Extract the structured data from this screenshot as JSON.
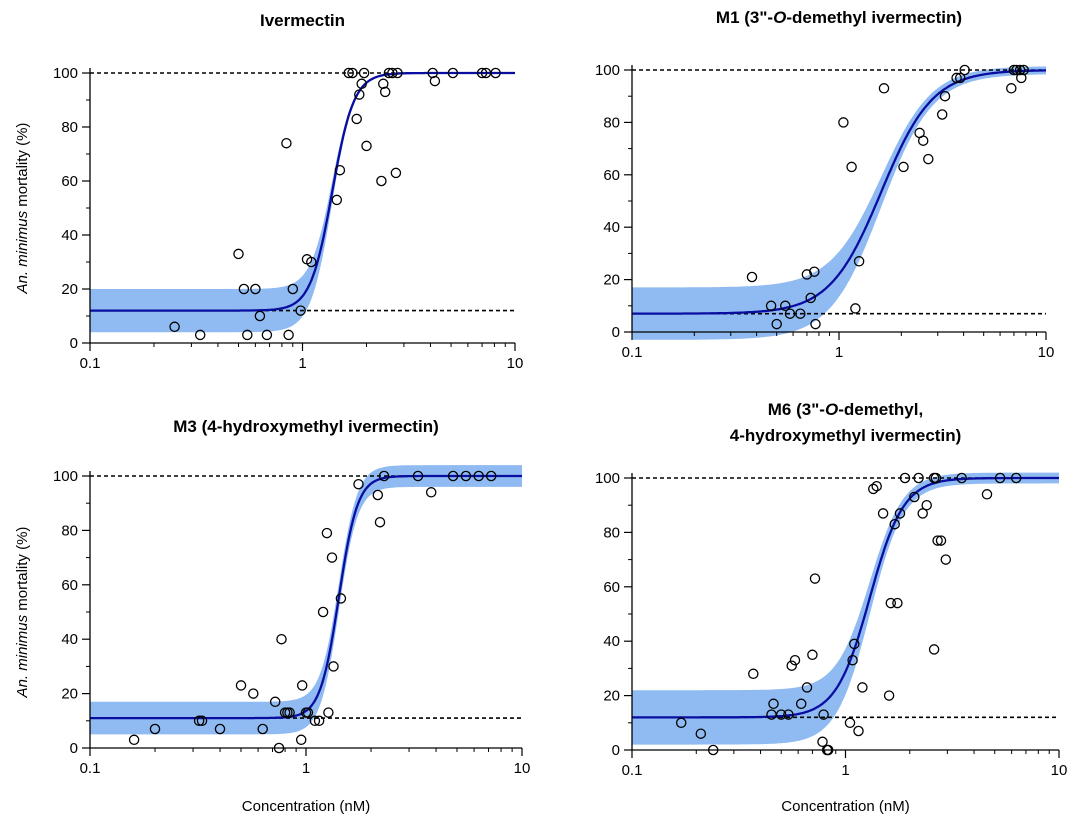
{
  "chart_data": [
    {
      "type": "scatter",
      "title_lines": [
        [
          "Ivermectin"
        ]
      ],
      "ylabel_parts": [
        "An. minimus",
        " mortality (%)"
      ],
      "xlabel": "",
      "xscale": "log",
      "xlim": [
        0.1,
        10
      ],
      "ylim": [
        0,
        100
      ],
      "xticks": [
        "0.1",
        "1",
        "10"
      ],
      "yticks": [
        "0",
        "20",
        "40",
        "60",
        "80",
        "100"
      ],
      "reference_lines": [
        12,
        100
      ],
      "fit": {
        "bottom": 12,
        "top": 100,
        "ec50": 1.38,
        "hill": 8.5
      },
      "band_halfwidth": [
        8,
        0
      ],
      "points": [
        [
          0.25,
          6
        ],
        [
          0.33,
          3
        ],
        [
          0.5,
          33
        ],
        [
          0.53,
          20
        ],
        [
          0.55,
          3
        ],
        [
          0.6,
          20
        ],
        [
          0.63,
          10
        ],
        [
          0.68,
          3
        ],
        [
          0.84,
          74
        ],
        [
          0.86,
          3
        ],
        [
          0.9,
          20
        ],
        [
          0.98,
          12
        ],
        [
          1.05,
          31
        ],
        [
          1.1,
          30
        ],
        [
          1.45,
          53
        ],
        [
          1.5,
          64
        ],
        [
          1.65,
          100
        ],
        [
          1.72,
          100
        ],
        [
          1.8,
          83
        ],
        [
          1.85,
          92
        ],
        [
          1.9,
          96
        ],
        [
          1.95,
          100
        ],
        [
          2.0,
          73
        ],
        [
          2.35,
          60
        ],
        [
          2.4,
          96
        ],
        [
          2.45,
          93
        ],
        [
          2.55,
          100
        ],
        [
          2.65,
          100
        ],
        [
          2.75,
          63
        ],
        [
          2.8,
          100
        ],
        [
          4.1,
          100
        ],
        [
          4.2,
          97
        ],
        [
          5.1,
          100
        ],
        [
          7.0,
          100
        ],
        [
          7.3,
          100
        ],
        [
          8.1,
          100
        ]
      ]
    },
    {
      "type": "scatter",
      "title_lines": [
        [
          "M1 (3\"-",
          "O",
          "-demethyl ivermectin)"
        ]
      ],
      "ylabel_parts": [],
      "xlabel": "",
      "xscale": "log",
      "xlim": [
        0.1,
        10
      ],
      "ylim": [
        0,
        100
      ],
      "xticks": [
        "0.1",
        "1",
        "10"
      ],
      "yticks": [
        "0",
        "20",
        "40",
        "60",
        "80",
        "100"
      ],
      "reference_lines": [
        7,
        100
      ],
      "fit": {
        "bottom": 7,
        "top": 100,
        "ec50": 1.6,
        "hill": 3.5
      },
      "band_halfwidth": [
        10,
        1.5
      ],
      "points": [
        [
          0.38,
          21
        ],
        [
          0.47,
          10
        ],
        [
          0.5,
          3
        ],
        [
          0.55,
          10
        ],
        [
          0.58,
          7
        ],
        [
          0.65,
          7
        ],
        [
          0.7,
          22
        ],
        [
          0.73,
          13
        ],
        [
          0.76,
          23
        ],
        [
          0.77,
          3
        ],
        [
          1.05,
          80
        ],
        [
          1.15,
          63
        ],
        [
          1.2,
          9
        ],
        [
          1.25,
          27
        ],
        [
          1.65,
          93
        ],
        [
          2.05,
          63
        ],
        [
          2.45,
          76
        ],
        [
          2.55,
          73
        ],
        [
          2.7,
          66
        ],
        [
          3.15,
          83
        ],
        [
          3.25,
          90
        ],
        [
          3.7,
          97
        ],
        [
          3.85,
          97
        ],
        [
          4.05,
          100
        ],
        [
          6.8,
          93
        ],
        [
          7.0,
          100
        ],
        [
          7.2,
          100
        ],
        [
          7.5,
          100
        ],
        [
          7.6,
          97
        ],
        [
          7.8,
          100
        ]
      ]
    },
    {
      "type": "scatter",
      "title_lines": [
        [
          "M3 (4-hydroxymethyl ivermectin)"
        ]
      ],
      "ylabel_parts": [
        "An. minimus",
        " mortality (%)"
      ],
      "xlabel": "Concentration (nM)",
      "xscale": "log",
      "xlim": [
        0.1,
        10
      ],
      "ylim": [
        0,
        100
      ],
      "xticks": [
        "0.1",
        "1",
        "10"
      ],
      "yticks": [
        "0",
        "20",
        "40",
        "60",
        "80",
        "100"
      ],
      "reference_lines": [
        11,
        100
      ],
      "fit": {
        "bottom": 11,
        "top": 100,
        "ec50": 1.42,
        "hill": 10
      },
      "band_halfwidth": [
        6,
        4
      ],
      "points": [
        [
          0.16,
          3
        ],
        [
          0.2,
          7
        ],
        [
          0.32,
          10
        ],
        [
          0.33,
          10
        ],
        [
          0.4,
          7
        ],
        [
          0.5,
          23
        ],
        [
          0.57,
          20
        ],
        [
          0.63,
          7
        ],
        [
          0.72,
          17
        ],
        [
          0.75,
          0
        ],
        [
          0.77,
          40
        ],
        [
          0.8,
          13
        ],
        [
          0.82,
          13
        ],
        [
          0.84,
          13
        ],
        [
          0.95,
          3
        ],
        [
          0.96,
          23
        ],
        [
          1.0,
          13
        ],
        [
          1.02,
          13
        ],
        [
          1.1,
          10
        ],
        [
          1.15,
          10
        ],
        [
          1.2,
          50
        ],
        [
          1.25,
          79
        ],
        [
          1.27,
          13
        ],
        [
          1.32,
          70
        ],
        [
          1.34,
          30
        ],
        [
          1.45,
          55
        ],
        [
          1.75,
          97
        ],
        [
          2.15,
          93
        ],
        [
          2.2,
          83
        ],
        [
          2.3,
          100
        ],
        [
          3.3,
          100
        ],
        [
          3.8,
          94
        ],
        [
          4.8,
          100
        ],
        [
          5.5,
          100
        ],
        [
          6.3,
          100
        ],
        [
          7.2,
          100
        ]
      ]
    },
    {
      "type": "scatter",
      "title_lines": [
        [
          "M6 (3\"-",
          "O",
          "-demethyl,"
        ],
        [
          "4-hydroxymethyl ivermectin)"
        ]
      ],
      "ylabel_parts": [],
      "xlabel": "Concentration (nM)",
      "xscale": "log",
      "xlim": [
        0.1,
        10
      ],
      "ylim": [
        0,
        100
      ],
      "xticks": [
        "0.1",
        "1",
        "10"
      ],
      "yticks": [
        "0",
        "20",
        "40",
        "60",
        "80",
        "100"
      ],
      "reference_lines": [
        12,
        100
      ],
      "fit": {
        "bottom": 12,
        "top": 100,
        "ec50": 1.3,
        "hill": 5.5
      },
      "band_halfwidth": [
        10,
        2
      ],
      "points": [
        [
          0.17,
          10
        ],
        [
          0.21,
          6
        ],
        [
          0.24,
          0
        ],
        [
          0.37,
          28
        ],
        [
          0.45,
          13
        ],
        [
          0.46,
          17
        ],
        [
          0.5,
          13
        ],
        [
          0.54,
          13
        ],
        [
          0.58,
          33
        ],
        [
          0.56,
          31
        ],
        [
          0.62,
          17
        ],
        [
          0.66,
          23
        ],
        [
          0.7,
          35
        ],
        [
          0.72,
          63
        ],
        [
          0.78,
          3
        ],
        [
          0.79,
          13
        ],
        [
          0.82,
          0
        ],
        [
          0.83,
          0
        ],
        [
          1.05,
          10
        ],
        [
          1.08,
          33
        ],
        [
          1.1,
          39
        ],
        [
          1.15,
          7
        ],
        [
          1.2,
          23
        ],
        [
          1.35,
          96
        ],
        [
          1.4,
          97
        ],
        [
          1.5,
          87
        ],
        [
          1.6,
          20
        ],
        [
          1.63,
          54
        ],
        [
          1.7,
          83
        ],
        [
          1.75,
          54
        ],
        [
          1.8,
          87
        ],
        [
          1.9,
          100
        ],
        [
          2.1,
          93
        ],
        [
          2.2,
          100
        ],
        [
          2.3,
          87
        ],
        [
          2.4,
          90
        ],
        [
          2.6,
          37
        ],
        [
          2.6,
          100
        ],
        [
          2.65,
          100
        ],
        [
          2.7,
          77
        ],
        [
          2.8,
          77
        ],
        [
          2.95,
          70
        ],
        [
          3.5,
          100
        ],
        [
          4.6,
          94
        ],
        [
          5.3,
          100
        ],
        [
          6.3,
          100
        ]
      ]
    }
  ]
}
